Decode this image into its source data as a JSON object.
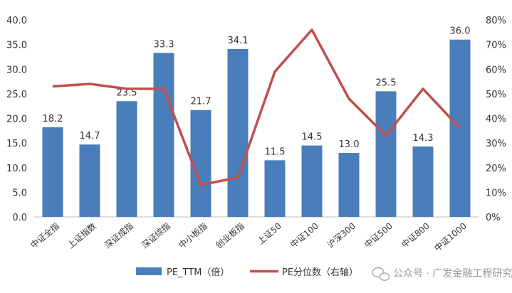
{
  "chart_data": {
    "type": "bar",
    "categories": [
      "中证全指",
      "上证指数",
      "深证成指",
      "深证综指",
      "中小板指",
      "创业板指",
      "上证50",
      "中证100",
      "沪深300",
      "中证500",
      "中证800",
      "中证1000"
    ],
    "series": [
      {
        "name": "PE_TTM（倍）",
        "type": "bar",
        "axis": "left",
        "color": "#4a7ebb",
        "values": [
          18.2,
          14.7,
          23.5,
          33.3,
          21.7,
          34.1,
          11.5,
          14.5,
          13.0,
          25.5,
          14.3,
          36.0
        ],
        "labels": [
          "18.2",
          "14.7",
          "23.5",
          "33.3",
          "21.7",
          "34.1",
          "11.5",
          "14.5",
          "13.0",
          "25.5",
          "14.3",
          "36.0"
        ]
      },
      {
        "name": "PE分位数（右轴）",
        "type": "line",
        "axis": "right",
        "color": "#c0504d",
        "values": [
          0.53,
          0.54,
          0.52,
          0.52,
          0.13,
          0.16,
          0.59,
          0.76,
          0.48,
          0.33,
          0.52,
          0.36
        ]
      }
    ],
    "y_left": {
      "min": 0,
      "max": 40,
      "ticks": [
        "0.0",
        "5.0",
        "10.0",
        "15.0",
        "20.0",
        "25.0",
        "30.0",
        "35.0",
        "40.0"
      ]
    },
    "y_right": {
      "min": 0,
      "max": 0.8,
      "ticks": [
        "0%",
        "10%",
        "20%",
        "30%",
        "40%",
        "50%",
        "60%",
        "70%",
        "80%"
      ]
    },
    "grid": false,
    "legend_position": "bottom"
  },
  "watermark": "公众号 · 广发金融工程研究"
}
